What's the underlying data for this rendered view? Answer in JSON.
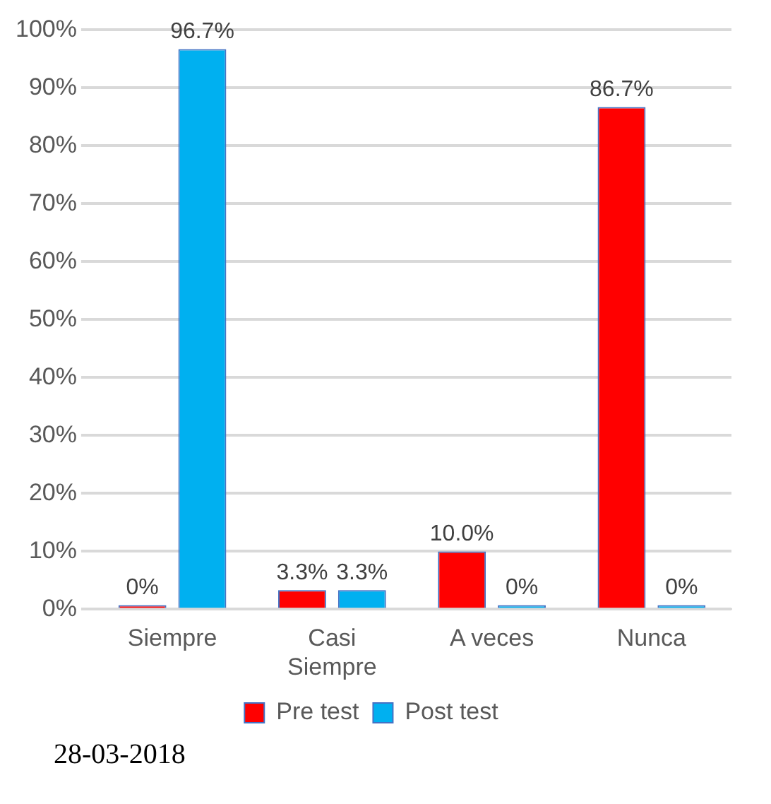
{
  "chart_data": {
    "type": "bar",
    "categories": [
      "Siempre",
      "Casi Siempre",
      "A veces",
      "Nunca"
    ],
    "series": [
      {
        "name": "Pre test",
        "color": "#ff0000",
        "values": [
          0,
          3.3,
          10,
          86.7
        ],
        "value_labels": [
          "0%",
          "3.3%",
          "10.0%",
          "86.7%"
        ]
      },
      {
        "name": "Post test",
        "color": "#00b0f0",
        "values": [
          96.7,
          3.3,
          0,
          0
        ],
        "value_labels": [
          "96.7%",
          "3.3%",
          "0%",
          "0%"
        ]
      }
    ],
    "ylim": [
      0,
      100
    ],
    "yticks": [
      {
        "value": 0,
        "label": "0%"
      },
      {
        "value": 10,
        "label": "10%"
      },
      {
        "value": 20,
        "label": "20%"
      },
      {
        "value": 30,
        "label": "30%"
      },
      {
        "value": 40,
        "label": "40%"
      },
      {
        "value": 50,
        "label": "50%"
      },
      {
        "value": 60,
        "label": "60%"
      },
      {
        "value": 70,
        "label": "70%"
      },
      {
        "value": 80,
        "label": "80%"
      },
      {
        "value": 90,
        "label": "90%"
      },
      {
        "value": 100,
        "label": "100%"
      }
    ],
    "grid": "y",
    "legend": "bottom",
    "annotations": [
      "28-03-2018"
    ]
  }
}
